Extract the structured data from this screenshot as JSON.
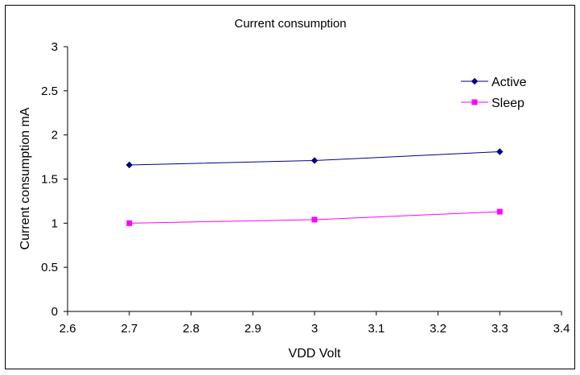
{
  "chart_data": {
    "type": "line",
    "title": "Current consumption",
    "xlabel": "VDD Volt",
    "ylabel": "Current consumption mA",
    "xlim": [
      2.6,
      3.4
    ],
    "ylim": [
      0,
      3
    ],
    "x_ticks": [
      "2.6",
      "2.7",
      "2.8",
      "2.9",
      "3",
      "3.1",
      "3.2",
      "3.3",
      "3.4"
    ],
    "y_ticks": [
      "0",
      "0.5",
      "1",
      "1.5",
      "2",
      "2.5",
      "3"
    ],
    "grid": false,
    "legend_position": "top-right",
    "series": [
      {
        "name": "Active",
        "color": "#000080",
        "marker": "diamond",
        "x": [
          2.7,
          3.0,
          3.3
        ],
        "y": [
          1.66,
          1.71,
          1.81
        ]
      },
      {
        "name": "Sleep",
        "color": "#FF00FF",
        "marker": "square",
        "x": [
          2.7,
          3.0,
          3.3
        ],
        "y": [
          1.0,
          1.04,
          1.13
        ]
      }
    ]
  }
}
